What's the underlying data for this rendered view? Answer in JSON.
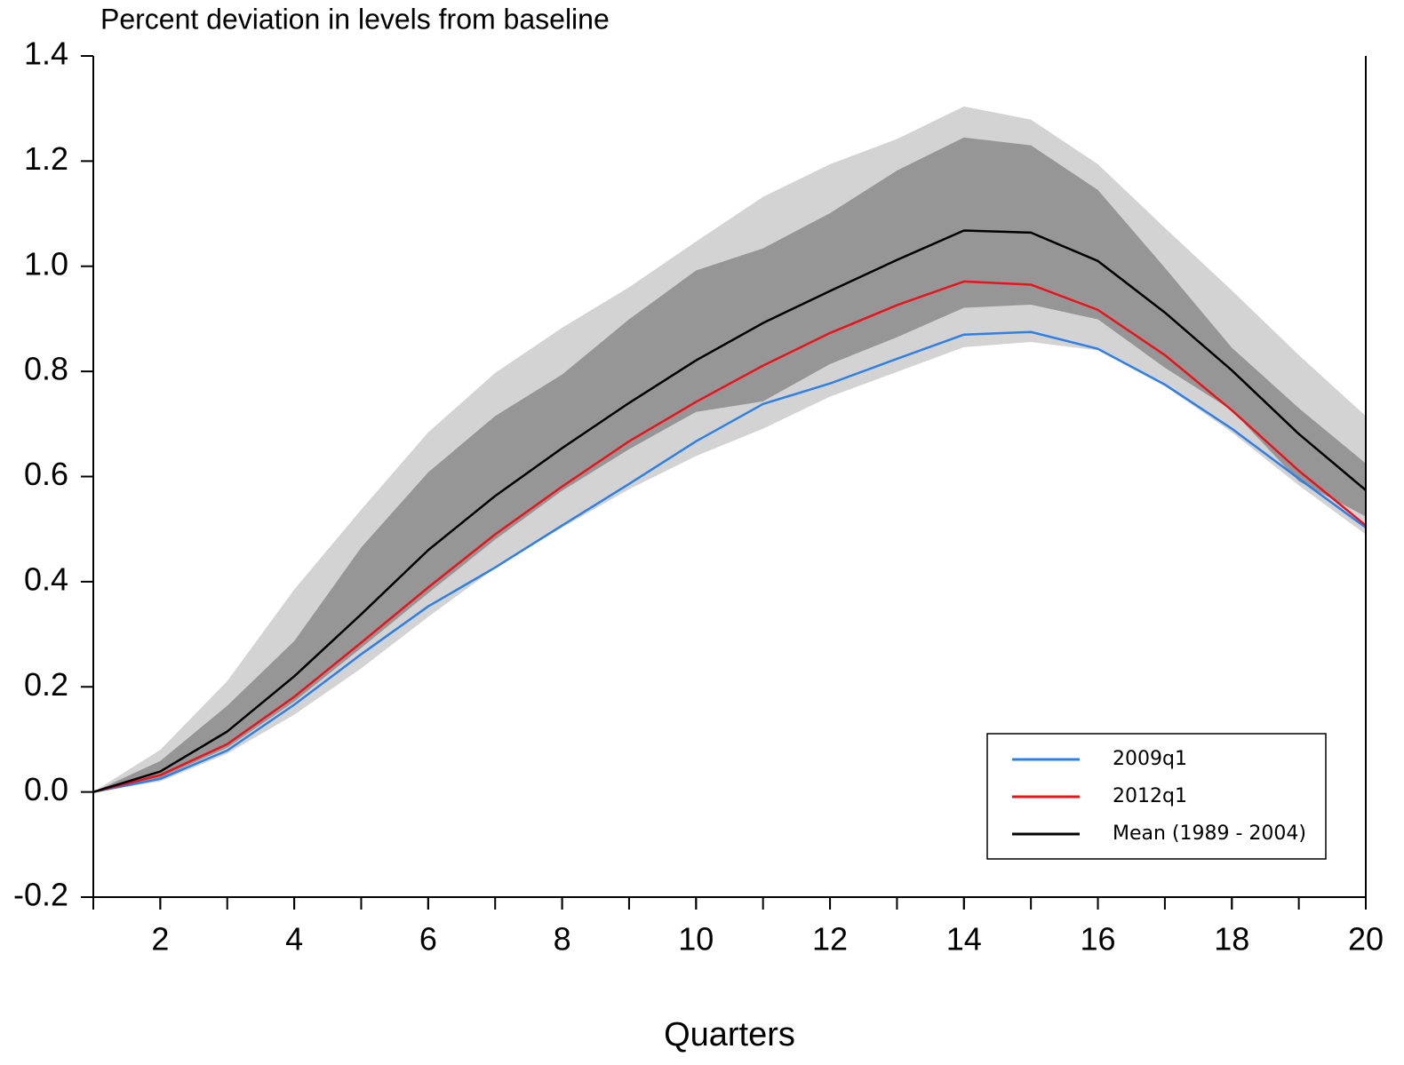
{
  "chart_data": {
    "type": "line",
    "title": "Percent deviation in levels from baseline",
    "xlabel": "Quarters",
    "x": [
      1,
      2,
      3,
      4,
      5,
      6,
      7,
      8,
      9,
      10,
      11,
      12,
      13,
      14,
      15,
      16,
      17,
      18,
      19,
      20
    ],
    "xlim": [
      1,
      20
    ],
    "xticks": [
      2,
      4,
      6,
      8,
      10,
      12,
      14,
      16,
      18,
      20
    ],
    "ylim": [
      -0.2,
      1.4
    ],
    "yticks": [
      -0.2,
      {
        "value": 0,
        "label": "0.0"
      },
      0.2,
      0.4,
      0.6,
      0.8,
      {
        "value": 1,
        "label": "1.0"
      },
      1.2,
      1.4
    ],
    "legend": "lower right",
    "bands": [
      {
        "color": "#d3d3d3",
        "upper": [
          0,
          0.08,
          0.211,
          0.385,
          0.537,
          0.684,
          0.797,
          0.883,
          0.96,
          1.047,
          1.132,
          1.194,
          1.242,
          1.304,
          1.279,
          1.194,
          1.073,
          0.954,
          0.831,
          0.715
        ],
        "lower": [
          0,
          0.02,
          0.073,
          0.147,
          0.235,
          0.333,
          0.426,
          0.503,
          0.576,
          0.639,
          0.691,
          0.752,
          0.799,
          0.846,
          0.856,
          0.84,
          0.772,
          0.684,
          0.583,
          0.49
        ]
      },
      {
        "color": "#969696",
        "upper": [
          0,
          0.059,
          0.164,
          0.287,
          0.465,
          0.608,
          0.715,
          0.794,
          0.899,
          0.992,
          1.034,
          1.101,
          1.182,
          1.245,
          1.23,
          1.145,
          0.997,
          0.845,
          0.73,
          0.625
        ],
        "lower": [
          0,
          0.027,
          0.084,
          0.172,
          0.274,
          0.378,
          0.48,
          0.573,
          0.652,
          0.723,
          0.743,
          0.814,
          0.865,
          0.921,
          0.927,
          0.899,
          0.807,
          0.726,
          0.591,
          0.524
        ]
      }
    ],
    "series": [
      {
        "name": "2009q1",
        "color": "#2e7fe6",
        "values": [
          0,
          0.025,
          0.079,
          0.166,
          0.262,
          0.353,
          0.427,
          0.507,
          0.586,
          0.667,
          0.738,
          0.777,
          0.824,
          0.87,
          0.875,
          0.843,
          0.775,
          0.691,
          0.596,
          0.503
        ]
      },
      {
        "name": "2012q1",
        "color": "#e8141c",
        "values": [
          0,
          0.032,
          0.091,
          0.181,
          0.284,
          0.389,
          0.49,
          0.581,
          0.667,
          0.742,
          0.811,
          0.873,
          0.926,
          0.971,
          0.965,
          0.917,
          0.831,
          0.726,
          0.611,
          0.507
        ]
      },
      {
        "name": "Mean (1989 - 2004)",
        "color": "#000000",
        "values": [
          0,
          0.039,
          0.115,
          0.22,
          0.338,
          0.46,
          0.563,
          0.654,
          0.74,
          0.821,
          0.892,
          0.953,
          1.012,
          1.068,
          1.064,
          1.01,
          0.912,
          0.802,
          0.681,
          0.574
        ]
      }
    ]
  }
}
